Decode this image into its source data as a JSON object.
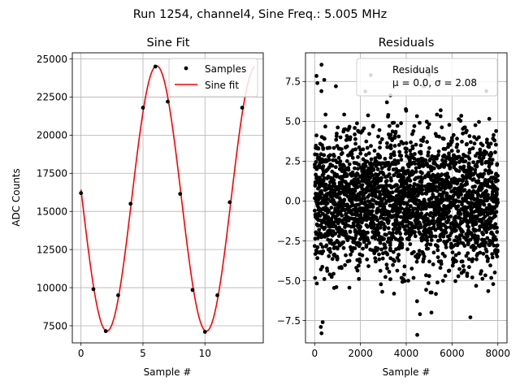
{
  "figure": {
    "suptitle": "Run 1254, channel4, Sine Freq.: 5.005 MHz"
  },
  "chart_data": [
    {
      "type": "line",
      "title": "Sine Fit",
      "xlabel": "Sample #",
      "ylabel": "ADC Counts",
      "xlim": [
        -0.7,
        14.7
      ],
      "ylim": [
        6380,
        25400
      ],
      "xticks": [
        0,
        5,
        10
      ],
      "xtick_labels": [
        "0",
        "5",
        "10"
      ],
      "yticks": [
        7500,
        10000,
        12500,
        15000,
        17500,
        20000,
        22500,
        25000
      ],
      "ytick_labels": [
        "7500",
        "10000",
        "12500",
        "15000",
        "17500",
        "20000",
        "22500",
        "25000"
      ],
      "grid": true,
      "legend_position": "upper right",
      "legend": [
        "Samples",
        "Sine fit"
      ],
      "series": [
        {
          "name": "Samples",
          "kind": "scatter",
          "color": "#000000",
          "x": [
            0,
            1,
            2,
            3,
            4,
            5,
            6,
            7,
            8,
            9,
            10,
            11,
            12,
            13
          ],
          "y": [
            16200,
            9900,
            7150,
            9500,
            15500,
            21800,
            24500,
            22200,
            16150,
            9850,
            7100,
            9500,
            15600,
            21800
          ]
        },
        {
          "name": "Sine fit",
          "kind": "line",
          "color": "#ff0000",
          "x_range": [
            0,
            14
          ],
          "params": {
            "offset": 15850,
            "amplitude": 8700,
            "period": 8.02,
            "peak_x": 6.1
          }
        }
      ]
    },
    {
      "type": "scatter",
      "title": "Residuals",
      "xlabel": "Sample #",
      "xlim": [
        -400,
        8400
      ],
      "ylim": [
        -8.9,
        9.3
      ],
      "xticks": [
        0,
        2000,
        4000,
        6000,
        8000
      ],
      "xtick_labels": [
        "0",
        "2000",
        "4000",
        "6000",
        "8000"
      ],
      "yticks": [
        -7.5,
        -5.0,
        -2.5,
        0.0,
        2.5,
        5.0,
        7.5
      ],
      "ytick_labels": [
        "−7.5",
        "−5.0",
        "−2.5",
        "0.0",
        "2.5",
        "5.0",
        "7.5"
      ],
      "grid": true,
      "legend_position": "upper right",
      "legend": [
        "Residuals",
        "μ = 0.0, σ = 2.08"
      ],
      "series": [
        {
          "name": "Residuals",
          "color": "#000000",
          "n_points": 8000,
          "x_range": [
            0,
            8000
          ],
          "mean": 0.0,
          "std": 2.08,
          "outliers": [
            {
              "x": 80,
              "y": 7.85
            },
            {
              "x": 120,
              "y": 7.4
            },
            {
              "x": 300,
              "y": 8.55
            },
            {
              "x": 420,
              "y": 7.6
            },
            {
              "x": 4500,
              "y": 8.2
            },
            {
              "x": 5000,
              "y": 7.9
            },
            {
              "x": 7500,
              "y": 6.9
            },
            {
              "x": 2450,
              "y": 7.9
            },
            {
              "x": 300,
              "y": -8.3
            },
            {
              "x": 270,
              "y": -7.9
            },
            {
              "x": 350,
              "y": -7.6
            },
            {
              "x": 4480,
              "y": -8.4
            },
            {
              "x": 4600,
              "y": -7.1
            },
            {
              "x": 5100,
              "y": -7.0
            },
            {
              "x": 6800,
              "y": -7.3
            }
          ]
        }
      ]
    }
  ]
}
